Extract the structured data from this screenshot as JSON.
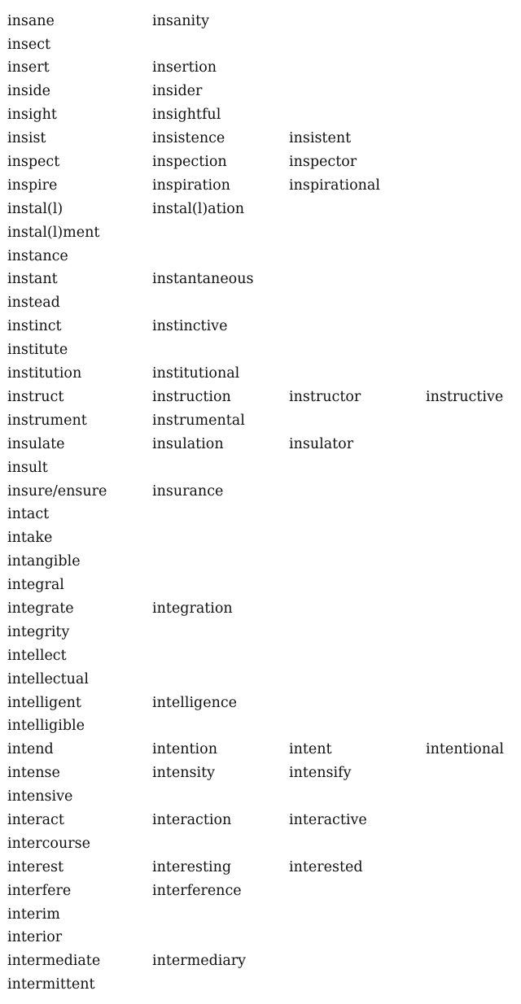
{
  "word_families": [
    [
      "insane",
      "insanity"
    ],
    [
      "insect"
    ],
    [
      "insert",
      "insertion"
    ],
    [
      "inside",
      "insider"
    ],
    [
      "insight",
      "insightful"
    ],
    [
      "insist",
      "insistence",
      "insistent"
    ],
    [
      "inspect",
      "inspection",
      "inspector"
    ],
    [
      "inspire",
      "inspiration",
      "inspirational"
    ],
    [
      "instal(l)",
      "instal(l)ation"
    ],
    [
      "instal(l)ment"
    ],
    [
      "instance"
    ],
    [
      "instant",
      "instantaneous"
    ],
    [
      "instead"
    ],
    [
      "instinct",
      "instinctive"
    ],
    [
      "institute"
    ],
    [
      "institution",
      "institutional"
    ],
    [
      "instruct",
      "instruction",
      "instructor",
      "instructive"
    ],
    [
      "instrument",
      "instrumental"
    ],
    [
      "insulate",
      "insulation",
      "insulator"
    ],
    [
      "insult"
    ],
    [
      "insure/ensure",
      "insurance"
    ],
    [
      "intact"
    ],
    [
      "intake"
    ],
    [
      "intangible"
    ],
    [
      "integral"
    ],
    [
      "integrate",
      "integration"
    ],
    [
      "integrity"
    ],
    [
      "intellect"
    ],
    [
      "intellectual"
    ],
    [
      "intelligent",
      "intelligence"
    ],
    [
      "intelligible"
    ],
    [
      "intend",
      "intention",
      "intent",
      "intentional"
    ],
    [
      "intense",
      "intensity",
      "intensify"
    ],
    [
      "intensive"
    ],
    [
      "interact",
      "interaction",
      "interactive"
    ],
    [
      "intercourse"
    ],
    [
      "interest",
      "interesting",
      "interested"
    ],
    [
      "interfere",
      "interference"
    ],
    [
      "interim"
    ],
    [
      "interior"
    ],
    [
      "intermediate",
      "intermediary"
    ],
    [
      "intermittent"
    ]
  ]
}
